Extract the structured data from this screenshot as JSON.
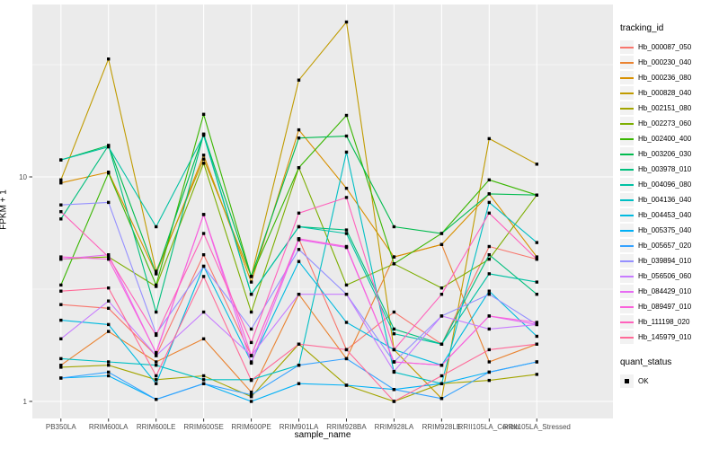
{
  "chart_data": {
    "type": "line",
    "title": "",
    "xlabel": "sample_name",
    "ylabel": "FPKM + 1",
    "y_scale": "log10",
    "y_ticks": [
      1,
      10
    ],
    "y_minor_ticks": [
      3.1623,
      31.623
    ],
    "ylim": [
      0.93,
      53
    ],
    "grid": true,
    "panel_bg": "#EBEBEB",
    "grid_color": "#FFFFFF",
    "point_color": "#000000",
    "tick_label_color": "#4D4D4D",
    "legend_position": "right",
    "legend_title": "tracking_id",
    "categories": [
      "PB350LA",
      "RRIM600LA",
      "RRIM600LE",
      "RRIM600SE",
      "RRIM600PE",
      "RRIM901LA",
      "RRIM928BA",
      "RRIM928LA",
      "RRIM928LE",
      "RRII105LA_Control",
      "RRII105LA_Stressed"
    ],
    "series": [
      {
        "name": "Hb_000087_050",
        "color": "#F8766D",
        "values": [
          2.7,
          2.6,
          1.6,
          4.5,
          1.6,
          5.3,
          1.7,
          2.5,
          1.8,
          4.9,
          4.3
        ]
      },
      {
        "name": "Hb_000230_040",
        "color": "#EA8331",
        "values": [
          1.45,
          2.05,
          1.5,
          1.9,
          1.1,
          3.0,
          1.55,
          4.4,
          5.0,
          1.5,
          1.8
        ]
      },
      {
        "name": "Hb_000236_080",
        "color": "#D89000",
        "values": [
          9.4,
          10.5,
          3.7,
          12.5,
          3.4,
          16.2,
          8.9,
          4.4,
          5.0,
          8.4,
          4.4
        ]
      },
      {
        "name": "Hb_000828_040",
        "color": "#C09B00",
        "values": [
          9.7,
          33.5,
          3.8,
          12.0,
          3.6,
          27.0,
          49.0,
          1.7,
          1.03,
          14.8,
          11.4
        ]
      },
      {
        "name": "Hb_002151_080",
        "color": "#A3A500",
        "values": [
          1.42,
          1.45,
          1.25,
          1.3,
          1.05,
          1.8,
          1.18,
          1.0,
          1.2,
          1.24,
          1.32
        ]
      },
      {
        "name": "Hb_002273_060",
        "color": "#7CAE00",
        "values": [
          4.3,
          4.4,
          3.25,
          11.5,
          2.5,
          11.0,
          3.3,
          4.1,
          3.2,
          4.3,
          8.3
        ]
      },
      {
        "name": "Hb_002400_400",
        "color": "#39B600",
        "values": [
          3.3,
          10.4,
          3.3,
          19.0,
          3.6,
          11.0,
          18.8,
          4.1,
          5.6,
          9.7,
          8.3
        ]
      },
      {
        "name": "Hb_003206_030",
        "color": "#00BB4E",
        "values": [
          11.9,
          13.8,
          3.7,
          15.5,
          3.6,
          14.9,
          15.2,
          6.0,
          5.6,
          8.4,
          8.3
        ]
      },
      {
        "name": "Hb_003978_010",
        "color": "#00BF7D",
        "values": [
          6.5,
          13.8,
          2.5,
          15.5,
          3.0,
          6.0,
          5.8,
          2.1,
          1.8,
          4.5,
          3.0
        ]
      },
      {
        "name": "Hb_004096_080",
        "color": "#00C1A3",
        "values": [
          11.9,
          13.6,
          6.0,
          15.3,
          3.0,
          6.0,
          5.6,
          2.0,
          1.8,
          3.7,
          3.4
        ]
      },
      {
        "name": "Hb_004136_040",
        "color": "#00BFC4",
        "values": [
          1.55,
          1.5,
          1.45,
          1.25,
          1.25,
          1.45,
          12.9,
          1.35,
          1.2,
          7.7,
          5.1
        ]
      },
      {
        "name": "Hb_004453_040",
        "color": "#00BAE0",
        "values": [
          2.3,
          2.2,
          1.2,
          4.0,
          1.5,
          4.2,
          2.25,
          1.7,
          1.45,
          3.1,
          1.95
        ]
      },
      {
        "name": "Hb_005375_040",
        "color": "#00B0F6",
        "values": [
          1.27,
          1.3,
          1.02,
          1.2,
          1.0,
          1.2,
          1.18,
          1.13,
          1.2,
          1.35,
          1.5
        ]
      },
      {
        "name": "Hb_005657_020",
        "color": "#35A2FF",
        "values": [
          1.27,
          1.35,
          1.02,
          1.2,
          1.07,
          1.45,
          1.55,
          1.13,
          1.03,
          1.35,
          1.5
        ]
      },
      {
        "name": "Hb_039894_010",
        "color": "#9590FF",
        "values": [
          7.5,
          7.7,
          2.0,
          4.0,
          2.1,
          4.75,
          3.0,
          1.5,
          2.4,
          3.0,
          2.2
        ]
      },
      {
        "name": "Hb_056506_060",
        "color": "#C77CFF",
        "values": [
          1.9,
          2.8,
          1.6,
          2.5,
          1.6,
          3.0,
          3.0,
          1.36,
          2.4,
          2.1,
          2.2
        ]
      },
      {
        "name": "Hb_084429_010",
        "color": "#E76BF3",
        "values": [
          4.3,
          4.5,
          1.64,
          6.8,
          1.48,
          5.25,
          4.85,
          1.5,
          1.45,
          2.4,
          2.2
        ]
      },
      {
        "name": "Hb_089497_010",
        "color": "#FA62DB",
        "values": [
          4.4,
          4.3,
          1.65,
          6.8,
          1.6,
          5.3,
          4.9,
          1.5,
          1.45,
          2.4,
          2.25
        ]
      },
      {
        "name": "Hb_111198_020",
        "color": "#FF62BC",
        "values": [
          7.0,
          4.4,
          1.97,
          5.6,
          1.83,
          6.9,
          8.1,
          1.7,
          3.0,
          6.9,
          4.3
        ]
      },
      {
        "name": "Hb_145979_010",
        "color": "#FF6A98",
        "values": [
          3.1,
          3.2,
          1.3,
          3.6,
          1.24,
          1.8,
          1.7,
          1.0,
          1.3,
          1.7,
          1.8
        ]
      }
    ],
    "quant_legend": {
      "title": "quant_status",
      "items": [
        {
          "label": "OK",
          "marker_color": "#000000",
          "marker": "square"
        }
      ]
    }
  }
}
